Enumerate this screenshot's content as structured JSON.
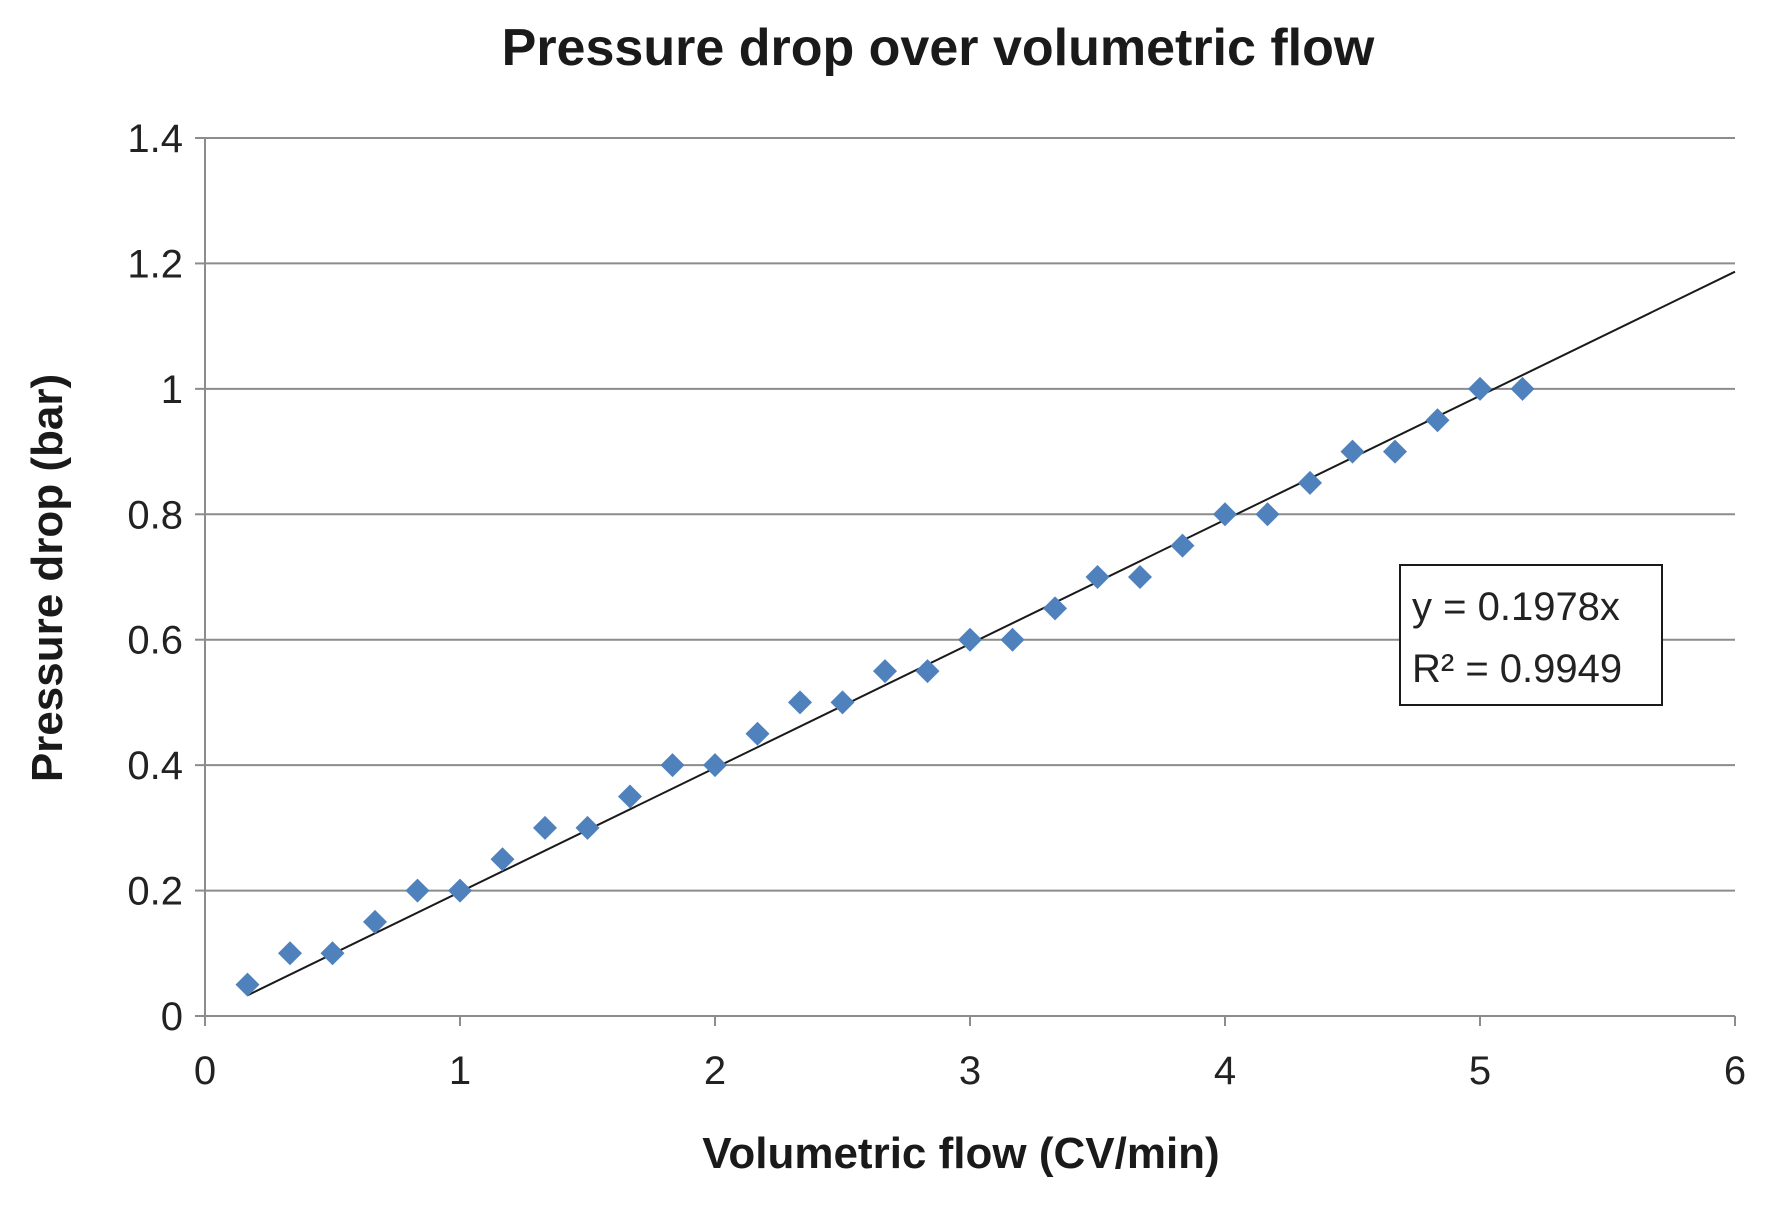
{
  "chart_data": {
    "type": "scatter",
    "title": "Pressure drop over volumetric flow",
    "xlabel": "Volumetric flow (CV/min)",
    "ylabel": "Pressure drop (bar)",
    "xlim": [
      0,
      6
    ],
    "ylim": [
      0,
      1.4
    ],
    "xticks": [
      0,
      1,
      2,
      3,
      4,
      5,
      6
    ],
    "yticks": [
      0,
      0.2,
      0.4,
      0.6,
      0.8,
      1,
      1.2,
      1.4
    ],
    "xtick_labels": [
      "0",
      "1",
      "2",
      "3",
      "4",
      "5",
      "6"
    ],
    "ytick_labels": [
      "0",
      "0.2",
      "0.4",
      "0.6",
      "0.8",
      "1",
      "1.2",
      "1.4"
    ],
    "grid": "horizontal",
    "marker": "diamond",
    "colors": {
      "points": "#4f81bd",
      "trendline": "#1a1a1a",
      "grid": "#8c8c8c"
    },
    "series": [
      {
        "name": "Pressure drop",
        "x": [
          0.1667,
          0.3333,
          0.5,
          0.6667,
          0.8333,
          1.0,
          1.1667,
          1.3333,
          1.5,
          1.6667,
          1.8333,
          2.0,
          2.1667,
          2.3333,
          2.5,
          2.6667,
          2.8333,
          3.0,
          3.1667,
          3.3333,
          3.5,
          3.6667,
          3.8333,
          4.0,
          4.1667,
          4.3333,
          4.5,
          4.6667,
          4.8333,
          5.0,
          5.1667
        ],
        "y": [
          0.05,
          0.1,
          0.1,
          0.15,
          0.2,
          0.2,
          0.25,
          0.3,
          0.3,
          0.35,
          0.4,
          0.4,
          0.45,
          0.5,
          0.5,
          0.55,
          0.55,
          0.6,
          0.6,
          0.65,
          0.7,
          0.7,
          0.75,
          0.8,
          0.8,
          0.85,
          0.9,
          0.9,
          0.95,
          1.0,
          1.0
        ]
      }
    ],
    "trendline": {
      "type": "linear-through-origin",
      "slope": 0.1978,
      "x_range": [
        0.1667,
        6
      ],
      "equation": "y = 0.1978x",
      "r_squared": "R² = 0.9949",
      "label_position": "right"
    }
  }
}
